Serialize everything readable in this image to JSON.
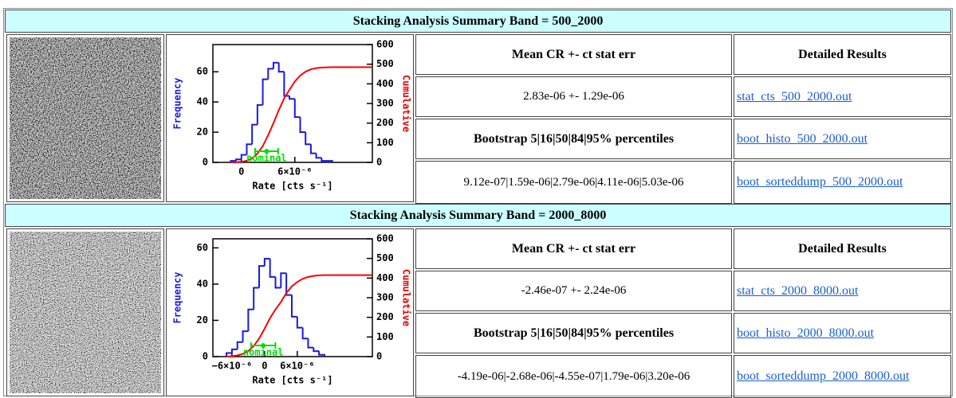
{
  "sections": [
    {
      "header": "Stacking Analysis Summary Band = 500_2000",
      "mean_header": "Mean CR +- ct stat err",
      "results_header": "Detailed Results",
      "mean_value": "2.83e-06 +- 1.29e-06",
      "stat_link": "stat_cts_500_2000.out",
      "bootstrap_header": "Bootstrap 5|16|50|84|95% percentiles",
      "histo_link": "boot_histo_500_2000.out",
      "bootstrap_values": "9.12e-07|1.59e-06|2.79e-06|4.11e-06|5.03e-06",
      "dump_link": "boot_sorteddump_500_2000.out",
      "plot": {
        "type": "histogram",
        "x_label": "Rate [cts s⁻¹]",
        "y_label": "Frequency",
        "y2_label": "Cumulative",
        "xlim": [
          -3.2e-06,
          1.47e-05
        ],
        "ylim": [
          0,
          78
        ],
        "y2lim": [
          0,
          600
        ],
        "xticks": [
          0,
          {
            "value": 6e-06,
            "label": "6×10⁻⁶"
          }
        ],
        "yticks": [
          0,
          20,
          40,
          60
        ],
        "y2ticks": [
          0,
          100,
          200,
          300,
          400,
          500,
          600
        ],
        "bins": [
          -1.2e-06,
          -6e-07,
          0,
          6e-07,
          1.2e-06,
          1.8e-06,
          2.4e-06,
          3e-06,
          3.6e-06,
          4.2e-06,
          4.8e-06,
          5.4e-06,
          6e-06,
          6.6e-06,
          7.2e-06,
          7.8e-06,
          8.4e-06,
          9e-06,
          9.6e-06,
          1.02e-05
        ],
        "counts": [
          1,
          2,
          5,
          12,
          25,
          38,
          55,
          62,
          66,
          60,
          44,
          42,
          30,
          20,
          12,
          6,
          3,
          1,
          1
        ],
        "nominal": {
          "label": "nominal",
          "value": 2.83e-06,
          "error": 1.29e-06
        }
      }
    },
    {
      "header": "Stacking Analysis Summary Band = 2000_8000",
      "mean_header": "Mean CR +- ct stat err",
      "results_header": "Detailed Results",
      "mean_value": "-2.46e-07 +- 2.24e-06",
      "stat_link": "stat_cts_2000_8000.out",
      "bootstrap_header": "Bootstrap 5|16|50|84|95% percentiles",
      "histo_link": "boot_histo_2000_8000.out",
      "bootstrap_values": "-4.19e-06|-2.68e-06|-4.55e-07|1.79e-06|3.20e-06",
      "dump_link": "boot_sorteddump_2000_8000.out",
      "plot": {
        "type": "histogram",
        "x_label": "Rate [cts s⁻¹]",
        "y_label": "Frequency",
        "y2_label": "Cumulative",
        "xlim": [
          -9.5e-06,
          1.98e-05
        ],
        "ylim": [
          0,
          65
        ],
        "y2lim": [
          0,
          600
        ],
        "xticks": [
          {
            "value": -6e-06,
            "label": "−6×10⁻⁶"
          },
          0,
          {
            "value": 6e-06,
            "label": "6×10⁻⁶"
          }
        ],
        "yticks": [
          0,
          20,
          40,
          60
        ],
        "y2ticks": [
          0,
          100,
          200,
          300,
          400,
          500,
          600
        ],
        "bins": [
          -7e-06,
          -6e-06,
          -5e-06,
          -4e-06,
          -3e-06,
          -2e-06,
          -1e-06,
          0,
          1e-06,
          2e-06,
          3e-06,
          4e-06,
          5e-06,
          6e-06,
          7e-06,
          8e-06,
          9e-06,
          1e-05,
          1.1e-05
        ],
        "counts": [
          2,
          4,
          8,
          14,
          26,
          38,
          50,
          54,
          44,
          38,
          46,
          34,
          22,
          16,
          10,
          5,
          3,
          1
        ],
        "nominal": {
          "label": "nominal",
          "value": -2.46e-07,
          "error": 2.24e-06
        }
      }
    }
  ]
}
